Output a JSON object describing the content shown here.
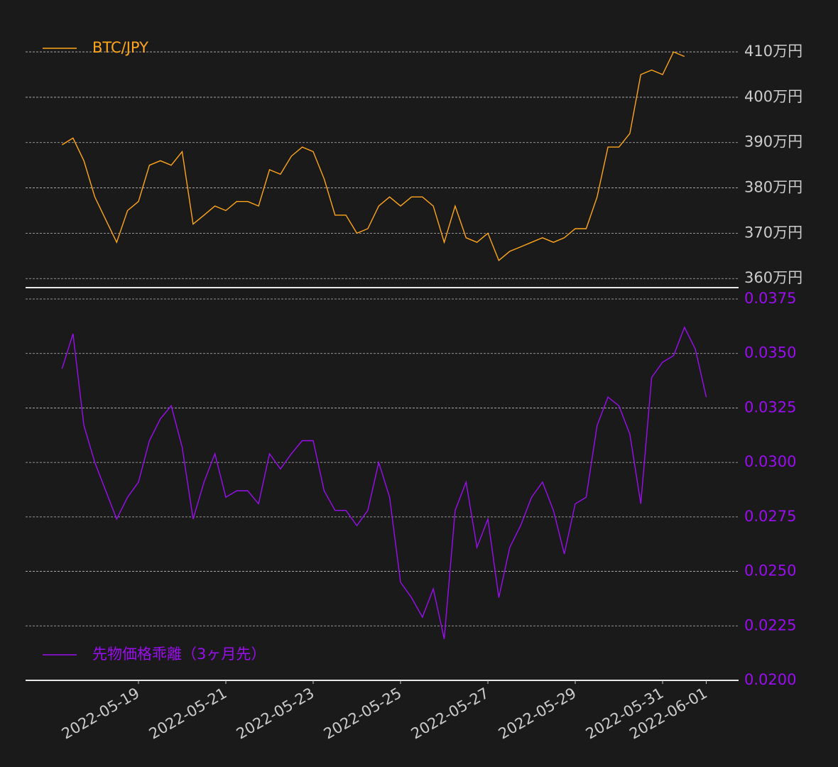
{
  "chart_data": {
    "type": "line",
    "categories": [
      null,
      null,
      null,
      null,
      null,
      null,
      null,
      "2022-05-19",
      null,
      null,
      null,
      null,
      null,
      null,
      null,
      "2022-05-21",
      null,
      null,
      null,
      null,
      null,
      null,
      null,
      "2022-05-23",
      null,
      null,
      null,
      null,
      null,
      null,
      null,
      "2022-05-25",
      null,
      null,
      null,
      null,
      null,
      null,
      null,
      "2022-05-27",
      null,
      null,
      null,
      null,
      null,
      null,
      null,
      "2022-05-29",
      null,
      null,
      null,
      null,
      null,
      null,
      null,
      "2022-05-31",
      null,
      null,
      null,
      "2022-06-01"
    ],
    "panels": [
      {
        "legend": "upper left",
        "grid": true,
        "series": [
          {
            "name": "BTC/JPY",
            "color": "#ffa61a",
            "values": [
              3895000,
              3910000,
              3860000,
              3780000,
              3730000,
              3680000,
              3750000,
              3770000,
              3850000,
              3860000,
              3850000,
              3880000,
              3720000,
              3740000,
              3760000,
              3750000,
              3770000,
              3770000,
              3760000,
              3840000,
              3830000,
              3870000,
              3890000,
              3880000,
              3820000,
              3740000,
              3740000,
              3700000,
              3710000,
              3760000,
              3780000,
              3760000,
              3780000,
              3780000,
              3760000,
              3680000,
              3760000,
              3690000,
              3680000,
              3700000,
              3640000,
              3660000,
              3670000,
              3680000,
              3690000,
              3680000,
              3690000,
              3710000,
              3710000,
              3780000,
              3890000,
              3890000,
              3920000,
              4050000,
              4060000,
              4050000,
              4100000,
              4090000,
              null,
              null
            ]
          }
        ],
        "ylim": [
          3580000,
          4144000
        ],
        "yticks": [
          {
            "value": 3600000,
            "label": "360万円"
          },
          {
            "value": 3700000,
            "label": "370万円"
          },
          {
            "value": 3800000,
            "label": "380万円"
          },
          {
            "value": 3900000,
            "label": "390万円"
          },
          {
            "value": 4000000,
            "label": "400万円"
          },
          {
            "value": 4100000,
            "label": "410万円"
          }
        ]
      },
      {
        "legend": "lower left",
        "grid": true,
        "series": [
          {
            "name": "先物価格乖離（3ヶ月先）",
            "color": "#9b0ef0",
            "values": [
              0.0343,
              0.0359,
              0.0317,
              0.03,
              0.0287,
              0.0274,
              0.0284,
              0.0291,
              0.031,
              0.032,
              0.0326,
              0.0307,
              0.0274,
              0.0291,
              0.0304,
              0.0284,
              0.0287,
              0.0287,
              0.0281,
              0.0304,
              0.0297,
              0.0304,
              0.031,
              0.031,
              0.0287,
              0.0278,
              0.0278,
              0.0271,
              0.0278,
              0.03,
              0.0284,
              0.0245,
              0.0238,
              0.0229,
              0.0242,
              0.0219,
              0.0278,
              0.0291,
              0.0261,
              0.0274,
              0.0238,
              0.0261,
              0.0271,
              0.0284,
              0.0291,
              0.0278,
              0.0258,
              0.0281,
              0.0284,
              0.0317,
              0.033,
              0.0326,
              0.0313,
              0.0281,
              0.0339,
              0.0346,
              0.0349,
              0.0362,
              0.0352,
              0.033
            ]
          }
        ],
        "ylim": [
          0.02,
          0.0375
        ],
        "yticks": [
          {
            "value": 0.02,
            "label": "0.0200"
          },
          0.0225,
          {
            "value": 0.025,
            "label": "0.0250"
          },
          0.0275,
          {
            "value": 0.03,
            "label": "0.0300"
          },
          0.0325,
          {
            "value": 0.035,
            "label": "0.0350"
          },
          0.0375
        ]
      }
    ]
  }
}
